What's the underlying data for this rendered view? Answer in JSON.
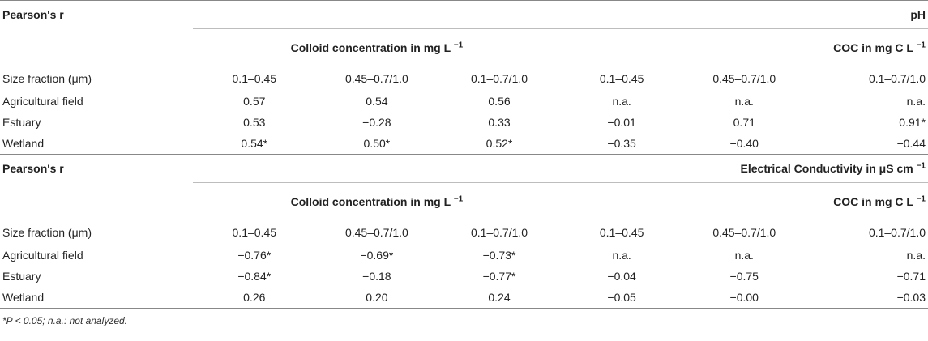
{
  "blocks": [
    {
      "corner_label": "Pearson's r",
      "variable": "pH",
      "group1": "Colloid concentration in mg L",
      "group2": "COC in mg C L",
      "size_label": "Size fraction (μm)",
      "fractions": [
        "0.1–0.45",
        "0.45–0.7/1.0",
        "0.1–0.7/1.0",
        "0.1–0.45",
        "0.45–0.7/1.0",
        "0.1–0.7/1.0"
      ],
      "rows": [
        {
          "site": "Agricultural field",
          "values": [
            "0.57",
            "0.54",
            "0.56",
            "n.a.",
            "n.a.",
            "n.a."
          ]
        },
        {
          "site": "Estuary",
          "values": [
            "0.53",
            "−0.28",
            "0.33",
            "−0.01",
            "0.71",
            "0.91*"
          ]
        },
        {
          "site": "Wetland",
          "values": [
            "0.54*",
            "0.50*",
            "0.52*",
            "−0.35",
            "−0.40",
            "−0.44"
          ]
        }
      ]
    },
    {
      "corner_label": "Pearson's r",
      "variable": "Electrical Conductivity in μS cm",
      "group1": "Colloid concentration in mg L",
      "group2": "COC in mg C L",
      "size_label": "Size fraction (μm)",
      "fractions": [
        "0.1–0.45",
        "0.45–0.7/1.0",
        "0.1–0.7/1.0",
        "0.1–0.45",
        "0.45–0.7/1.0",
        "0.1–0.7/1.0"
      ],
      "rows": [
        {
          "site": "Agricultural field",
          "values": [
            "−0.76*",
            "−0.69*",
            "−0.73*",
            "n.a.",
            "n.a.",
            "n.a."
          ]
        },
        {
          "site": "Estuary",
          "values": [
            "−0.84*",
            "−0.18",
            "−0.77*",
            "−0.04",
            "−0.75",
            "−0.71"
          ]
        },
        {
          "site": "Wetland",
          "values": [
            "0.26",
            "0.20",
            "0.24",
            "−0.05",
            "−0.00",
            "−0.03"
          ]
        }
      ]
    }
  ],
  "units": {
    "minus_one": "−1"
  },
  "footnote": "*P < 0.05; n.a.: not analyzed."
}
